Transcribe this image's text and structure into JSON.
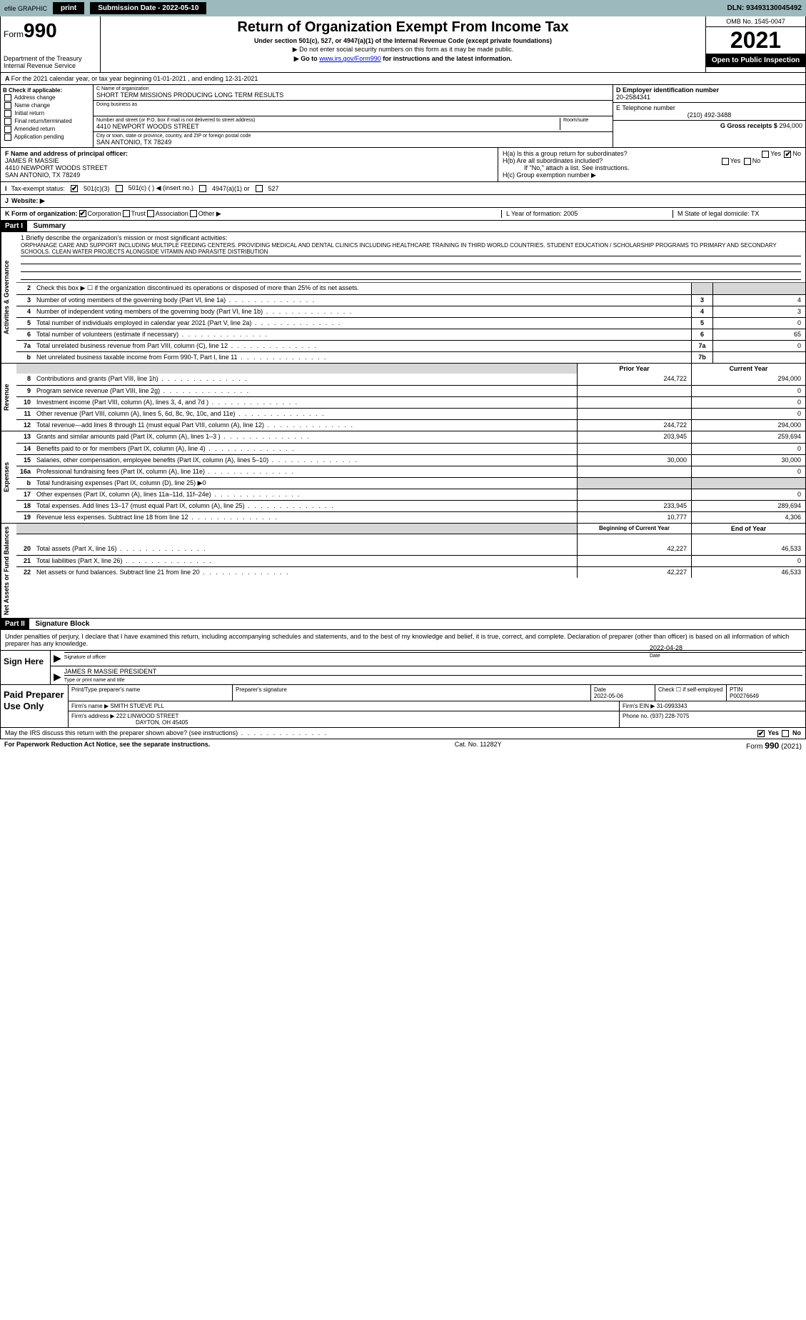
{
  "topbar": {
    "efile": "efile GRAPHIC",
    "print": "print",
    "sub_label": "Submission Date - 2022-05-10",
    "dln": "DLN: 93493130045492"
  },
  "header": {
    "form_prefix": "Form",
    "form_num": "990",
    "title": "Return of Organization Exempt From Income Tax",
    "sub1": "Under section 501(c), 527, or 4947(a)(1) of the Internal Revenue Code (except private foundations)",
    "note1": "▶ Do not enter social security numbers on this form as it may be made public.",
    "note2_pre": "▶ Go to ",
    "note2_link": "www.irs.gov/Form990",
    "note2_post": " for instructions and the latest information.",
    "dept": "Department of the Treasury",
    "irs": "Internal Revenue Service",
    "omb": "OMB No. 1545-0047",
    "year": "2021",
    "inspection": "Open to Public Inspection"
  },
  "line_a": "For the 2021 calendar year, or tax year beginning 01-01-2021    , and ending 12-31-2021",
  "box_b": {
    "title": "B Check if applicable:",
    "items": [
      "Address change",
      "Name change",
      "Initial return",
      "Final return/terminated",
      "Amended return",
      "Application pending"
    ]
  },
  "box_c": {
    "name_label": "C Name of organization",
    "name": "SHORT TERM MISSIONS PRODUCING LONG TERM RESULTS",
    "dba_label": "Doing business as",
    "street_label": "Number and street (or P.O. box if mail is not delivered to street address)",
    "room_label": "Room/suite",
    "street": "4410 NEWPORT WOODS STREET",
    "city_label": "City or town, state or province, country, and ZIP or foreign postal code",
    "city": "SAN ANTONIO, TX  78249"
  },
  "box_d": {
    "label": "D Employer identification number",
    "value": "20-2584341"
  },
  "box_e": {
    "label": "E Telephone number",
    "value": "(210) 492-3488"
  },
  "box_g": {
    "label": "G Gross receipts $",
    "value": "294,000"
  },
  "box_f": {
    "label": "F  Name and address of principal officer:",
    "name": "JAMES R MASSIE",
    "street": "4410 NEWPORT WOODS STREET",
    "city": "SAN ANTONIO, TX  78249"
  },
  "box_h": {
    "ha": "H(a)  Is this a group return for subordinates?",
    "hb": "H(b)  Are all subordinates included?",
    "hb_note": "If \"No,\" attach a list. See instructions.",
    "hc": "H(c)  Group exemption number ▶",
    "yes": "Yes",
    "no": "No"
  },
  "box_i": {
    "label": "Tax-exempt status:",
    "c3": "501(c)(3)",
    "c": "501(c) (    ) ◀ (insert no.)",
    "a1": "4947(a)(1) or",
    "527": "527"
  },
  "box_j": {
    "label": "Website: ▶"
  },
  "box_k": {
    "label": "K Form of organization:",
    "corp": "Corporation",
    "trust": "Trust",
    "assoc": "Association",
    "other": "Other ▶",
    "l": "L Year of formation: 2005",
    "m": "M State of legal domicile: TX"
  },
  "part1": {
    "header": "Part I",
    "title": "Summary"
  },
  "mission": {
    "q1": "1  Briefly describe the organization's mission or most significant activities:",
    "text": "ORPHANAGE CARE AND SUPPORT INCLUDING MULTIPLE FEEDING CENTERS. PROVIDING MEDICAL AND DENTAL CLINICS INCLUDING HEALTHCARE TRAINING IN THIRD WORLD COUNTRIES. STUDENT EDUCATION / SCHOLARSHIP PROGRAMS TO PRIMARY AND SECONDARY SCHOOLS. CLEAN WATER PROJECTS ALONGSIDE VITAMIN AND PARASITE DISTRIBUTION"
  },
  "gov_lines": [
    {
      "n": "2",
      "t": "Check this box ▶ ☐  if the organization discontinued its operations or disposed of more than 25% of its net assets."
    },
    {
      "n": "3",
      "t": "Number of voting members of the governing body (Part VI, line 1a)",
      "box": "3",
      "v": "4"
    },
    {
      "n": "4",
      "t": "Number of independent voting members of the governing body (Part VI, line 1b)",
      "box": "4",
      "v": "3"
    },
    {
      "n": "5",
      "t": "Total number of individuals employed in calendar year 2021 (Part V, line 2a)",
      "box": "5",
      "v": "0"
    },
    {
      "n": "6",
      "t": "Total number of volunteers (estimate if necessary)",
      "box": "6",
      "v": "65"
    },
    {
      "n": "7a",
      "t": "Total unrelated business revenue from Part VIII, column (C), line 12",
      "box": "7a",
      "v": "0"
    },
    {
      "n": "b",
      "t": "Net unrelated business taxable income from Form 990-T, Part I, line 11",
      "box": "7b",
      "v": ""
    }
  ],
  "col_headers": {
    "prior": "Prior Year",
    "current": "Current Year"
  },
  "revenue": [
    {
      "n": "8",
      "t": "Contributions and grants (Part VIII, line 1h)",
      "p": "244,722",
      "c": "294,000"
    },
    {
      "n": "9",
      "t": "Program service revenue (Part VIII, line 2g)",
      "p": "",
      "c": "0"
    },
    {
      "n": "10",
      "t": "Investment income (Part VIII, column (A), lines 3, 4, and 7d )",
      "p": "",
      "c": "0"
    },
    {
      "n": "11",
      "t": "Other revenue (Part VIII, column (A), lines 5, 6d, 8c, 9c, 10c, and 11e)",
      "p": "",
      "c": "0"
    },
    {
      "n": "12",
      "t": "Total revenue—add lines 8 through 11 (must equal Part VIII, column (A), line 12)",
      "p": "244,722",
      "c": "294,000"
    }
  ],
  "expenses": [
    {
      "n": "13",
      "t": "Grants and similar amounts paid (Part IX, column (A), lines 1–3 )",
      "p": "203,945",
      "c": "259,694"
    },
    {
      "n": "14",
      "t": "Benefits paid to or for members (Part IX, column (A), line 4)",
      "p": "",
      "c": "0"
    },
    {
      "n": "15",
      "t": "Salaries, other compensation, employee benefits (Part IX, column (A), lines 5–10)",
      "p": "30,000",
      "c": "30,000"
    },
    {
      "n": "16a",
      "t": "Professional fundraising fees (Part IX, column (A), line 11e)",
      "p": "",
      "c": "0"
    },
    {
      "n": "b",
      "t": "Total fundraising expenses (Part IX, column (D), line 25) ▶0",
      "shaded": true
    },
    {
      "n": "17",
      "t": "Other expenses (Part IX, column (A), lines 11a–11d, 11f–24e)",
      "p": "",
      "c": "0"
    },
    {
      "n": "18",
      "t": "Total expenses. Add lines 13–17 (must equal Part IX, column (A), line 25)",
      "p": "233,945",
      "c": "289,694"
    },
    {
      "n": "19",
      "t": "Revenue less expenses. Subtract line 18 from line 12",
      "p": "10,777",
      "c": "4,306"
    }
  ],
  "net_headers": {
    "begin": "Beginning of Current Year",
    "end": "End of Year"
  },
  "net": [
    {
      "n": "20",
      "t": "Total assets (Part X, line 16)",
      "p": "42,227",
      "c": "46,533"
    },
    {
      "n": "21",
      "t": "Total liabilities (Part X, line 26)",
      "p": "",
      "c": "0"
    },
    {
      "n": "22",
      "t": "Net assets or fund balances. Subtract line 21 from line 20",
      "p": "42,227",
      "c": "46,533"
    }
  ],
  "part2": {
    "header": "Part II",
    "title": "Signature Block"
  },
  "sig_intro": "Under penalties of perjury, I declare that I have examined this return, including accompanying schedules and statements, and to the best of my knowledge and belief, it is true, correct, and complete. Declaration of preparer (other than officer) is based on all information of which preparer has any knowledge.",
  "sign": {
    "here": "Sign Here",
    "sig_label": "Signature of officer",
    "date": "2022-04-28",
    "date_label": "Date",
    "name": "JAMES R MASSIE  PRESIDENT",
    "name_label": "Type or print name and title"
  },
  "prep": {
    "title": "Paid Preparer Use Only",
    "h_name": "Print/Type preparer's name",
    "h_sig": "Preparer's signature",
    "h_date": "Date",
    "date": "2022-05-06",
    "check": "Check ☐ if self-employed",
    "ptin_l": "PTIN",
    "ptin": "P00276649",
    "firm_l": "Firm's name    ▶",
    "firm": "SMITH STUEVE PLL",
    "ein_l": "Firm's EIN ▶",
    "ein": "31-0993343",
    "addr_l": "Firm's address ▶",
    "addr1": "222 LINWOOD STREET",
    "addr2": "DAYTON, OH  45405",
    "phone_l": "Phone no.",
    "phone": "(937) 228-7075"
  },
  "discuss": {
    "q": "May the IRS discuss this return with the preparer shown above? (see instructions)",
    "yes": "Yes",
    "no": "No"
  },
  "footer": {
    "left": "For Paperwork Reduction Act Notice, see the separate instructions.",
    "mid": "Cat. No. 11282Y",
    "right_pre": "Form ",
    "right_num": "990",
    "right_post": " (2021)"
  },
  "side_labels": {
    "gov": "Activities & Governance",
    "rev": "Revenue",
    "exp": "Expenses",
    "net": "Net Assets or Fund Balances"
  }
}
